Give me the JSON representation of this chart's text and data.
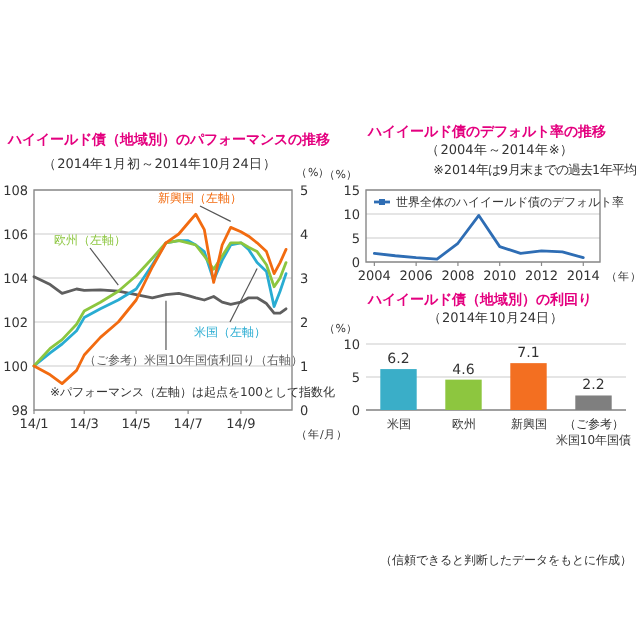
{
  "chart_data": [
    {
      "type": "line",
      "title": "ハイイールド債（地域別）のパフォーマンスの推移",
      "subtitle": "（2014年1月初～2014年10月24日）",
      "xlabel": "（年/月）",
      "y2label": "（%）",
      "grid": "y",
      "x": [
        "2014-01-01",
        "2014-01-20",
        "2014-02-03",
        "2014-02-20",
        "2014-03-01",
        "2014-03-20",
        "2014-04-10",
        "2014-05-01",
        "2014-05-20",
        "2014-06-05",
        "2014-06-20",
        "2014-07-01",
        "2014-07-10",
        "2014-07-20",
        "2014-07-31",
        "2014-08-10",
        "2014-08-20",
        "2014-09-01",
        "2014-09-10",
        "2014-09-20",
        "2014-10-01",
        "2014-10-10",
        "2014-10-17",
        "2014-10-24"
      ],
      "series": [
        {
          "name": "米国（左軸）",
          "color": "#29acd2",
          "values": [
            100,
            100.6,
            101.0,
            101.6,
            102.2,
            102.6,
            103.0,
            103.5,
            104.6,
            105.6,
            105.7,
            105.7,
            105.5,
            105.2,
            103.9,
            104.8,
            105.5,
            105.6,
            105.3,
            104.7,
            104.3,
            102.7,
            103.4,
            104.2
          ]
        },
        {
          "name": "欧州（左軸）",
          "color": "#8cc63f",
          "values": [
            100,
            100.8,
            101.2,
            101.9,
            102.5,
            102.9,
            103.4,
            104.1,
            104.9,
            105.6,
            105.7,
            105.6,
            105.5,
            105.0,
            104.4,
            105.0,
            105.6,
            105.6,
            105.4,
            105.2,
            104.6,
            103.6,
            104.0,
            104.7
          ]
        },
        {
          "name": "新興国（左軸）",
          "color": "#f26b10",
          "values": [
            100,
            99.6,
            99.2,
            99.8,
            100.5,
            101.3,
            102.0,
            103.0,
            104.5,
            105.6,
            106.0,
            106.5,
            106.9,
            106.2,
            103.8,
            105.5,
            106.3,
            106.1,
            105.9,
            105.6,
            105.2,
            104.2,
            104.7,
            105.3
          ]
        },
        {
          "name": "（ご参考）米国10年国債利回り（右軸）",
          "color": "#5f5f5f",
          "axis": "y2",
          "values": [
            3.03,
            2.85,
            2.65,
            2.75,
            2.72,
            2.73,
            2.7,
            2.62,
            2.55,
            2.62,
            2.65,
            2.6,
            2.55,
            2.5,
            2.58,
            2.45,
            2.4,
            2.45,
            2.55,
            2.55,
            2.42,
            2.2,
            2.2,
            2.3
          ]
        }
      ],
      "xlim": [
        "2014-01-01",
        "2014-10-31"
      ],
      "xticks": [
        {
          "value": "2014-01",
          "label": "14/1"
        },
        {
          "value": "2014-03",
          "label": "14/3"
        },
        {
          "value": "2014-05",
          "label": "14/5"
        },
        {
          "value": "2014-07",
          "label": "14/7"
        },
        {
          "value": "2014-09",
          "label": "14/9"
        }
      ],
      "ylim": [
        98,
        108
      ],
      "yticks": [
        98,
        100,
        102,
        104,
        106,
        108
      ],
      "y2lim": [
        0,
        5
      ],
      "y2ticks": [
        0,
        1,
        2,
        3,
        4,
        5
      ],
      "annotations": [
        "※パフォーマンス（左軸）は起点を100として指数化"
      ]
    },
    {
      "type": "line",
      "title": "ハイイールド債のデフォルト率の推移",
      "subtitle": "（2004年～2014年※）",
      "ylabel": "（%）",
      "xlabel": "（年）",
      "grid": "y",
      "legend": "top",
      "x": [
        2004,
        2005,
        2006,
        2007,
        2008,
        2009,
        2010,
        2011,
        2012,
        2013,
        2014
      ],
      "series": [
        {
          "name": "世界全体のハイイールド債のデフォルト率",
          "color": "#2e6db4",
          "values": [
            1.8,
            1.3,
            0.9,
            0.6,
            3.9,
            9.7,
            3.2,
            1.8,
            2.3,
            2.1,
            0.9
          ]
        }
      ],
      "xlim": [
        2003.6,
        2014.8
      ],
      "xticks": [
        2004,
        2006,
        2008,
        2010,
        2012,
        2014
      ],
      "ylim": [
        0,
        15
      ],
      "yticks": [
        0,
        5,
        10,
        15
      ],
      "annotations": [
        "※2014年は9月末までの過去1年平均"
      ]
    },
    {
      "type": "bar",
      "title": "ハイイールド債（地域別）の利回り",
      "subtitle": "（2014年10月24日）",
      "ylabel": "（%）",
      "grid": "y",
      "data_labels": true,
      "categories": [
        "米国",
        "欧州",
        "新興国",
        "（ご参考）米国10年国債"
      ],
      "values": [
        6.2,
        4.6,
        7.1,
        2.2
      ],
      "colors": [
        "#3aaec8",
        "#8dc63f",
        "#f36f21",
        "#7f7f7f"
      ],
      "ylim": [
        0,
        10
      ],
      "yticks": [
        0,
        5,
        10
      ],
      "annotations": [
        "（信頼できると判断したデータをもとに作成）"
      ]
    }
  ]
}
